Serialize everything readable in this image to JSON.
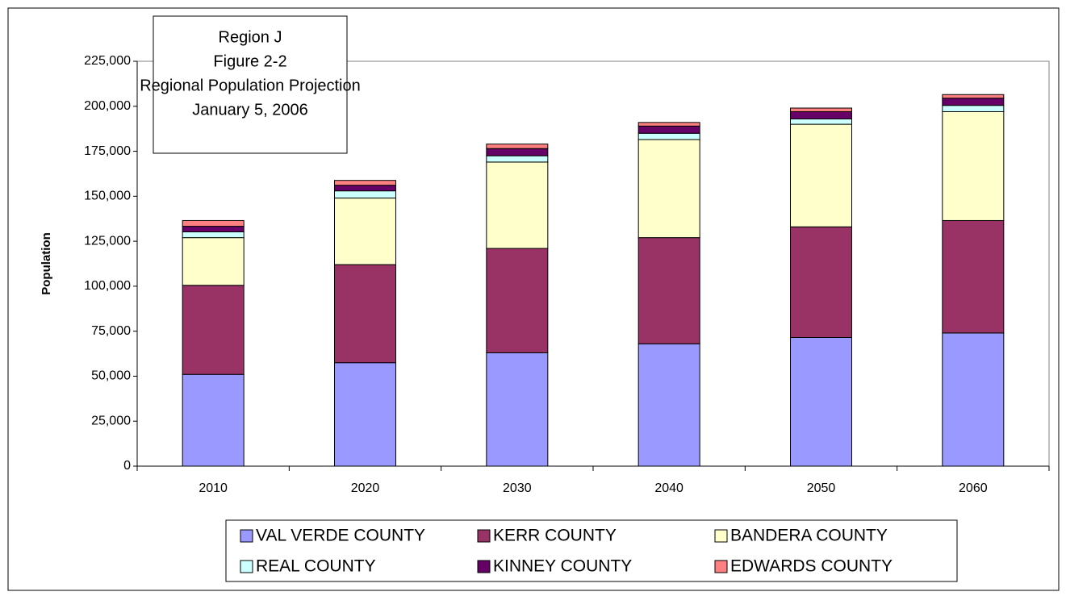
{
  "chart_data": {
    "type": "stacked_bar",
    "title_lines": [
      "Region J",
      "Figure 2-2",
      "Regional Population Projection",
      "January 5, 2006"
    ],
    "y_label": "Population",
    "categories": [
      "2010",
      "2020",
      "2030",
      "2040",
      "2050",
      "2060"
    ],
    "series": [
      {
        "name": "VAL VERDE COUNTY",
        "color": "#9999ff",
        "values": [
          51000,
          57500,
          63000,
          68000,
          71500,
          74000
        ]
      },
      {
        "name": "KERR COUNTY",
        "color": "#993366",
        "values": [
          49500,
          54500,
          58000,
          59000,
          61500,
          62500
        ]
      },
      {
        "name": "BANDERA COUNTY",
        "color": "#ffffcc",
        "values": [
          26500,
          37000,
          48000,
          54500,
          57000,
          60500
        ]
      },
      {
        "name": "REAL COUNTY",
        "color": "#ccffff",
        "values": [
          3200,
          4000,
          3500,
          3500,
          3000,
          3500
        ]
      },
      {
        "name": "KINNEY COUNTY",
        "color": "#660066",
        "values": [
          3100,
          3100,
          4000,
          4000,
          4000,
          4000
        ]
      },
      {
        "name": "EDWARDS COUNTY",
        "color": "#ff8080",
        "values": [
          3200,
          2700,
          2500,
          2000,
          2000,
          2000
        ]
      }
    ],
    "ylim": [
      0,
      225000
    ],
    "yticks": [
      0,
      {
        "value": 25000,
        "label": "25,000"
      },
      {
        "value": 50000,
        "label": "50,000"
      },
      {
        "value": 75000,
        "label": "75,000"
      },
      {
        "value": 100000,
        "label": "100,000"
      },
      {
        "value": 125000,
        "label": "125,000"
      },
      {
        "value": 150000,
        "label": "150,000"
      },
      {
        "value": 175000,
        "label": "175,000"
      },
      {
        "value": 200000,
        "label": "200,000"
      },
      {
        "value": 225000,
        "label": "225,000"
      }
    ],
    "grid": false,
    "legend": "bottom"
  }
}
